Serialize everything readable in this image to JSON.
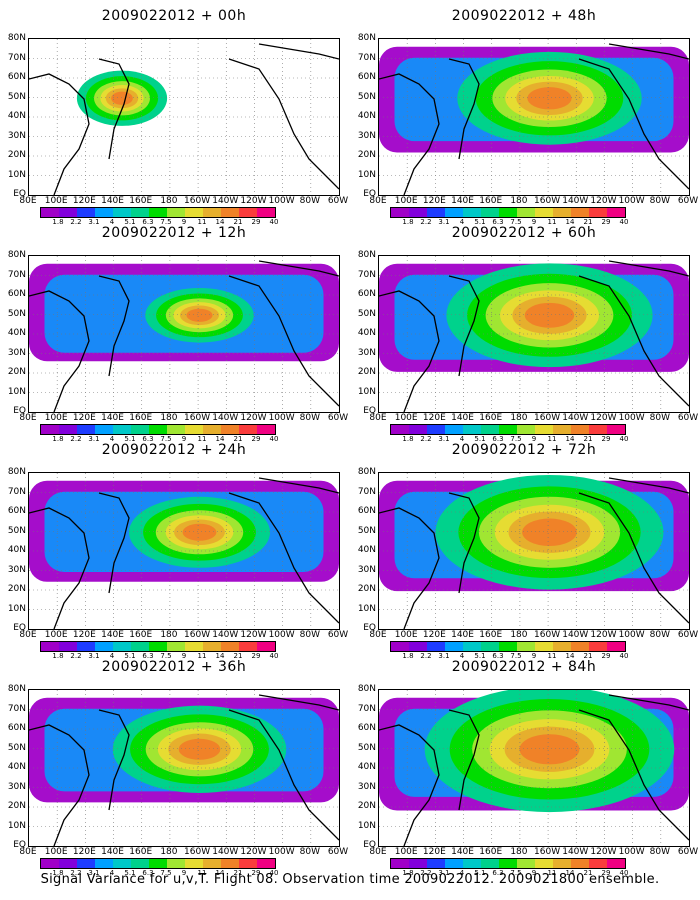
{
  "panels": [
    {
      "title": "2009022012 + 00h"
    },
    {
      "title": "2009022012 + 12h"
    },
    {
      "title": "2009022012 + 24h"
    },
    {
      "title": "2009022012 + 36h"
    },
    {
      "title": "2009022012 + 48h"
    },
    {
      "title": "2009022012 + 60h"
    },
    {
      "title": "2009022012 + 72h"
    },
    {
      "title": "2009022012 + 84h"
    }
  ],
  "lat_labels": [
    "80N",
    "70N",
    "60N",
    "50N",
    "40N",
    "30N",
    "20N",
    "10N",
    "EQ"
  ],
  "lon_labels": [
    "80E",
    "100E",
    "120E",
    "140E",
    "160E",
    "180",
    "160W",
    "140W",
    "120W",
    "100W",
    "80W",
    "60W"
  ],
  "colorbar": {
    "ticks": [
      "1.8",
      "2.2",
      "3.1",
      "4",
      "5.1",
      "6.3",
      "7.5",
      "9",
      "11",
      "14",
      "21",
      "29",
      "40"
    ],
    "colors": [
      "#a000c8",
      "#8200dc",
      "#1e3cff",
      "#00a0ff",
      "#00c8c8",
      "#00d28c",
      "#00dc00",
      "#a0e632",
      "#e6dc32",
      "#e6af2d",
      "#f08228",
      "#fa3c3c",
      "#f00082"
    ]
  },
  "caption": "Signal Variance for u,v,T. Flight 08. Observation time 2009022012. 2009021800 ensemble."
}
